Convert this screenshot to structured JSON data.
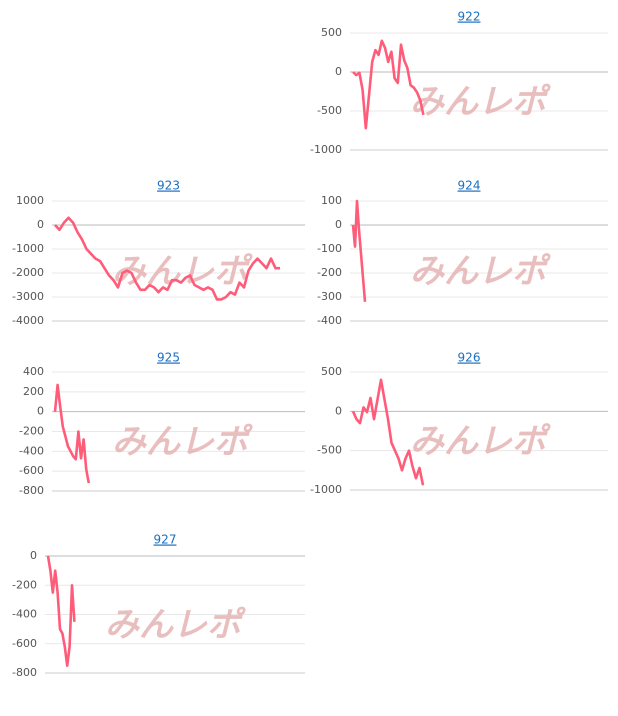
{
  "watermark": "みんレポ",
  "chart_data": [
    {
      "type": "line",
      "title": "922",
      "color": "#ff5c7a",
      "ylim": [
        -1000,
        500
      ],
      "yticks": [
        -1000,
        -500,
        0,
        500
      ],
      "grid": true,
      "values": [
        0,
        -40,
        -10,
        -230,
        -720,
        -300,
        130,
        280,
        220,
        400,
        310,
        130,
        260,
        -80,
        -140,
        350,
        150,
        50,
        -170,
        -200,
        -260,
        -360,
        -550
      ]
    },
    {
      "type": "line",
      "title": "923",
      "color": "#ff5c7a",
      "ylim": [
        -4000,
        1000
      ],
      "yticks": [
        -4000,
        -3000,
        -2000,
        -1000,
        0,
        1000
      ],
      "grid": true,
      "values": [
        0,
        -200,
        100,
        300,
        100,
        -300,
        -600,
        -1000,
        -1200,
        -1400,
        -1500,
        -1800,
        -2100,
        -2300,
        -2600,
        -2000,
        -1900,
        -2000,
        -2400,
        -2700,
        -2700,
        -2500,
        -2600,
        -2800,
        -2600,
        -2700,
        -2300,
        -2300,
        -2400,
        -2200,
        -2100,
        -2500,
        -2600,
        -2700,
        -2600,
        -2700,
        -3100,
        -3100,
        -3000,
        -2800,
        -2900,
        -2400,
        -2600,
        -1900,
        -1600,
        -1400,
        -1600,
        -1800,
        -1400,
        -1800,
        -1800
      ]
    },
    {
      "type": "line",
      "title": "924",
      "color": "#ff5c7a",
      "ylim": [
        -400,
        100
      ],
      "yticks": [
        -400,
        -300,
        -200,
        -100,
        0,
        100
      ],
      "grid": true,
      "values": [
        0,
        -90,
        100,
        -20,
        -120,
        -220,
        -320
      ]
    },
    {
      "type": "line",
      "title": "925",
      "color": "#ff5c7a",
      "ylim": [
        -800,
        400
      ],
      "yticks": [
        -800,
        -600,
        -400,
        -200,
        0,
        200,
        400
      ],
      "grid": true,
      "values": [
        0,
        270,
        50,
        -150,
        -250,
        -350,
        -400,
        -450,
        -480,
        -200,
        -470,
        -280,
        -580,
        -720
      ]
    },
    {
      "type": "line",
      "title": "926",
      "color": "#ff5c7a",
      "ylim": [
        -1000,
        500
      ],
      "yticks": [
        -1000,
        -500,
        0,
        500
      ],
      "grid": true,
      "values": [
        0,
        -100,
        -150,
        50,
        -10,
        170,
        -100,
        150,
        400,
        150,
        -100,
        -400,
        -500,
        -600,
        -750,
        -600,
        -500,
        -700,
        -850,
        -720,
        -940
      ]
    },
    {
      "type": "line",
      "title": "927",
      "color": "#ff5c7a",
      "ylim": [
        -800,
        0
      ],
      "yticks": [
        -800,
        -600,
        -400,
        -200,
        0
      ],
      "grid": true,
      "values": [
        0,
        -100,
        -250,
        -100,
        -250,
        -500,
        -530,
        -620,
        -750,
        -620,
        -200,
        -450
      ]
    }
  ]
}
